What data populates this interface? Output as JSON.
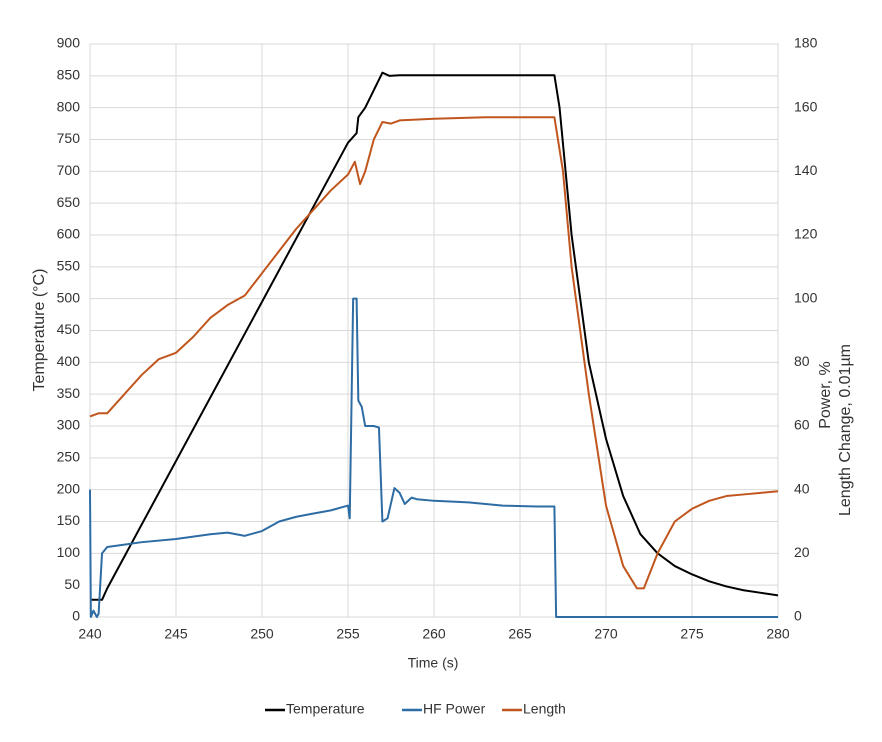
{
  "chart_data": {
    "type": "line",
    "xlabel": "Time (s)",
    "ylabel": "Temperature (°C)",
    "y2label": [
      "Power, %",
      "Length Change, 0.01µm"
    ],
    "xlim": [
      240,
      280
    ],
    "xticks": [
      240,
      245,
      250,
      255,
      260,
      265,
      270,
      275,
      280
    ],
    "ylim": [
      0,
      900
    ],
    "yticks": [
      0,
      50,
      100,
      150,
      200,
      250,
      300,
      350,
      400,
      450,
      500,
      550,
      600,
      650,
      700,
      750,
      800,
      850,
      900
    ],
    "y2lim": [
      0,
      180
    ],
    "y2ticks": [
      0,
      20,
      40,
      60,
      80,
      100,
      120,
      140,
      160,
      180
    ],
    "grid": true,
    "legend": "bottom",
    "series": [
      {
        "name": "Temperature",
        "color": "#000000",
        "axis": "y",
        "x": [
          240,
          240.7,
          241,
          255,
          255.5,
          255.6,
          256,
          257,
          257.4,
          258,
          267,
          267.3,
          268,
          269,
          270,
          271,
          272,
          273,
          274,
          275,
          276,
          277,
          278,
          279,
          280
        ],
        "values": [
          27,
          27,
          45,
          745,
          760,
          785,
          800,
          855,
          850,
          851,
          851,
          800,
          600,
          400,
          280,
          190,
          130,
          100,
          80,
          67,
          56,
          48,
          42,
          38,
          34
        ]
      },
      {
        "name": "HF Power",
        "color": "#2e6ca4",
        "axis": "y2",
        "x": [
          240,
          240.05,
          240.2,
          240.4,
          240.5,
          240.7,
          241,
          243,
          245,
          247,
          248,
          249,
          250,
          251,
          252,
          253,
          254,
          255,
          255.1,
          255.3,
          255.5,
          255.6,
          255.8,
          256,
          256.5,
          256.8,
          257,
          257.3,
          257.7,
          258,
          258.3,
          258.7,
          259,
          260,
          262,
          264,
          266,
          267,
          267.1,
          280
        ],
        "values": [
          40,
          0,
          2,
          0,
          1,
          20,
          22,
          23.5,
          24.5,
          26,
          26.5,
          25.5,
          27,
          30,
          31.5,
          32.5,
          33.5,
          35,
          31,
          100,
          100,
          68,
          66,
          60,
          60,
          59.5,
          30,
          31,
          40.5,
          39,
          35.5,
          37.5,
          37,
          36.5,
          36,
          35,
          34.7,
          34.7,
          0,
          0
        ]
      },
      {
        "name": "Length",
        "color": "#c0561e",
        "axis": "y2",
        "x": [
          240,
          240.5,
          241,
          242,
          243,
          244,
          245,
          246,
          247,
          248,
          249,
          250,
          251,
          252,
          253,
          254,
          255,
          255.4,
          255.7,
          256,
          256.5,
          257,
          257.5,
          258,
          260,
          263,
          267,
          267.5,
          268,
          269,
          270,
          271,
          271.8,
          272.2,
          273,
          274,
          275,
          276,
          277,
          278,
          279,
          280
        ],
        "values": [
          63,
          64,
          64,
          70,
          76,
          81,
          83,
          88,
          94,
          98,
          101,
          108,
          115,
          122,
          128,
          134,
          139,
          143,
          136,
          140,
          150,
          155.5,
          155,
          156,
          156.5,
          157,
          157,
          140,
          110,
          70,
          35,
          16,
          9,
          9,
          20,
          30,
          34,
          36.5,
          38,
          38.5,
          39,
          39.5
        ]
      }
    ]
  }
}
